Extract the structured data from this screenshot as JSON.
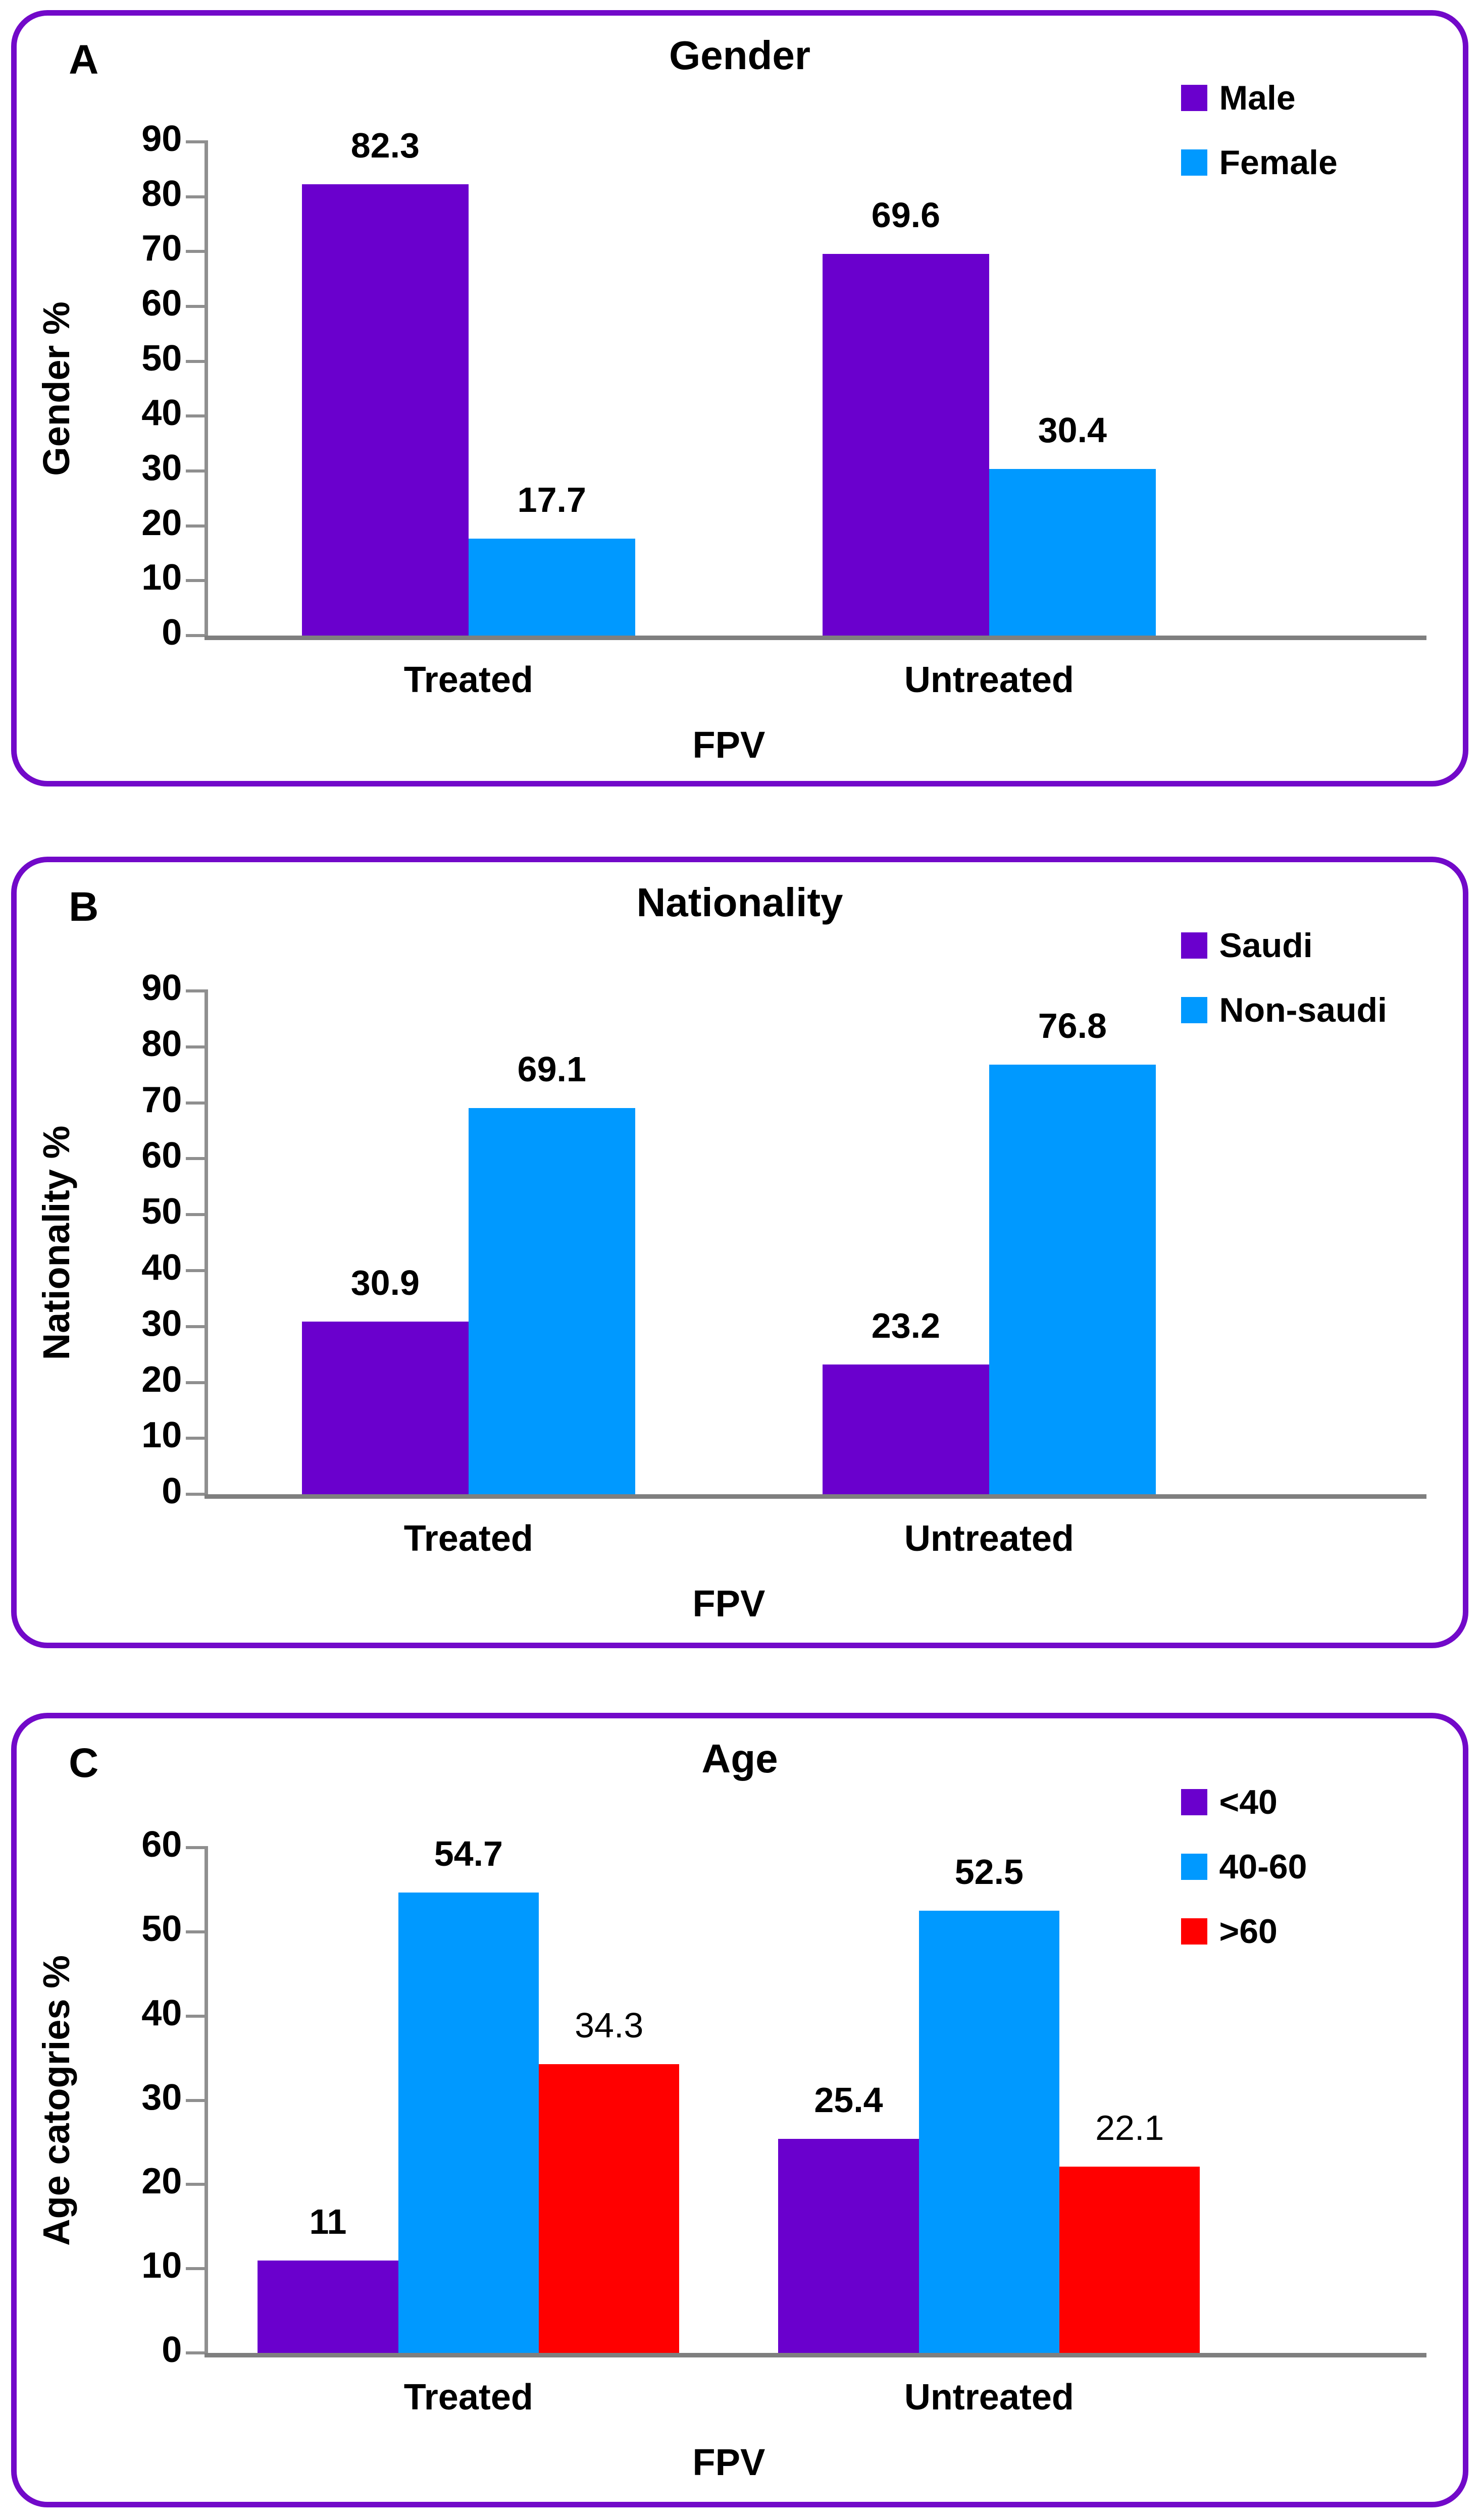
{
  "figure": {
    "background": "#FFFFFF",
    "panel_border_color": "#7209C9",
    "axis_color": "#8F8F8F",
    "baseline_color": "#7F7F7F",
    "bar_colors": {
      "purple": "#6A00CD",
      "blue": "#0099FF",
      "red": "#FF0000"
    }
  },
  "chart_data": [
    {
      "type": "bar",
      "panel_letter": "A",
      "title": "Gender",
      "xlabel": "FPV",
      "ylabel": "Gender %",
      "ylim": [
        0,
        90
      ],
      "ytick_step": 10,
      "grid": false,
      "legend_position": "top-right",
      "categories": [
        "Treated",
        "Untreated"
      ],
      "series": [
        {
          "name": "Male",
          "color": "#6A00CD",
          "values": [
            82.3,
            69.6
          ],
          "label_weight": "bold"
        },
        {
          "name": "Female",
          "color": "#0099FF",
          "values": [
            17.7,
            30.4
          ],
          "label_weight": "bold"
        }
      ]
    },
    {
      "type": "bar",
      "panel_letter": "B",
      "title": "Nationality",
      "xlabel": "FPV",
      "ylabel": "Nationality %",
      "ylim": [
        0,
        90
      ],
      "ytick_step": 10,
      "grid": false,
      "legend_position": "top-right",
      "categories": [
        "Treated",
        "Untreated"
      ],
      "series": [
        {
          "name": "Saudi",
          "color": "#6A00CD",
          "values": [
            30.9,
            23.2
          ],
          "label_weight": "bold"
        },
        {
          "name": "Non-saudi",
          "color": "#0099FF",
          "values": [
            69.1,
            76.8
          ],
          "label_weight": "bold"
        }
      ]
    },
    {
      "type": "bar",
      "panel_letter": "C",
      "title": "Age",
      "xlabel": "FPV",
      "ylabel": "Age catogries %",
      "ylim": [
        0,
        60
      ],
      "ytick_step": 10,
      "grid": false,
      "legend_position": "top-right",
      "categories": [
        "Treated",
        "Untreated"
      ],
      "series": [
        {
          "name": "<40",
          "color": "#6A00CD",
          "values": [
            11,
            25.4
          ],
          "label_weight": "bold"
        },
        {
          "name": "40-60",
          "color": "#0099FF",
          "values": [
            54.7,
            52.5
          ],
          "label_weight": "bold"
        },
        {
          "name": ">60",
          "color": "#FF0000",
          "values": [
            34.3,
            22.1
          ],
          "label_weight": "normal"
        }
      ]
    }
  ]
}
